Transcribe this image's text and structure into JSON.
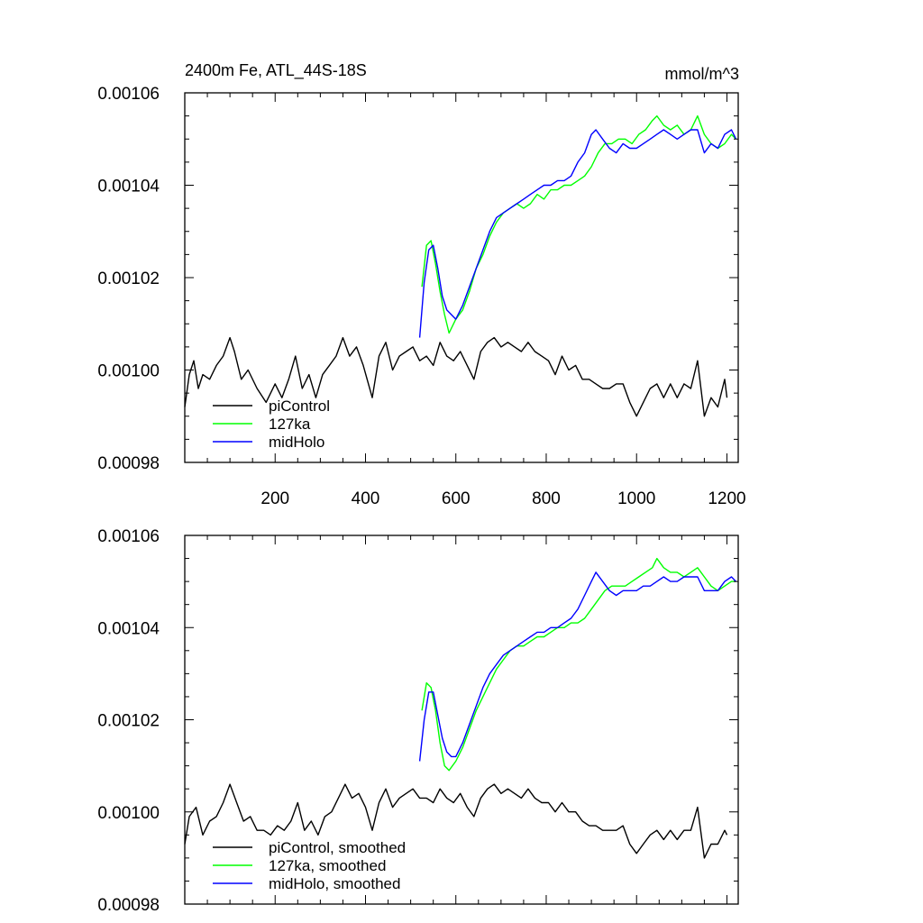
{
  "chart_data": [
    {
      "type": "line",
      "title": "2400m Fe, ATL_44S-18S",
      "units_label": "mmol/m^3",
      "xlim": [
        0,
        1225
      ],
      "ylim": [
        0.00098,
        0.00106
      ],
      "x_ticks": [
        200,
        400,
        600,
        800,
        1000,
        1200
      ],
      "x_tick_labels": [
        "200",
        "400",
        "600",
        "800",
        "1000",
        "1200"
      ],
      "y_ticks": [
        0.00098,
        0.001,
        0.00102,
        0.00104,
        0.00106
      ],
      "y_tick_labels": [
        "0.00098",
        "0.00100",
        "0.00102",
        "0.00104",
        "0.00106"
      ],
      "grid": false,
      "legend_position": "bottom-left",
      "series": [
        {
          "name": "piControl",
          "color": "#000000",
          "x": [
            0,
            10,
            20,
            30,
            40,
            55,
            70,
            85,
            100,
            110,
            125,
            140,
            160,
            180,
            200,
            215,
            230,
            245,
            260,
            275,
            290,
            305,
            320,
            335,
            350,
            365,
            380,
            395,
            415,
            430,
            445,
            460,
            475,
            490,
            505,
            520,
            535,
            550,
            565,
            580,
            595,
            610,
            625,
            640,
            655,
            670,
            685,
            700,
            715,
            730,
            745,
            760,
            775,
            790,
            805,
            820,
            835,
            850,
            865,
            880,
            895,
            910,
            925,
            940,
            955,
            970,
            985,
            1000,
            1015,
            1030,
            1045,
            1060,
            1075,
            1090,
            1105,
            1120,
            1135,
            1150,
            1165,
            1180,
            1195,
            1200
          ],
          "y": [
            0.000992,
            0.000999,
            0.001002,
            0.000996,
            0.000999,
            0.000998,
            0.001001,
            0.001003,
            0.001007,
            0.001004,
            0.000998,
            0.001,
            0.000996,
            0.000993,
            0.000997,
            0.000994,
            0.000998,
            0.001003,
            0.000996,
            0.000999,
            0.000994,
            0.000999,
            0.001001,
            0.001003,
            0.001007,
            0.001003,
            0.001005,
            0.001001,
            0.000994,
            0.001003,
            0.001006,
            0.001,
            0.001003,
            0.001004,
            0.001005,
            0.001002,
            0.001003,
            0.001001,
            0.001006,
            0.001003,
            0.001002,
            0.001004,
            0.001001,
            0.000998,
            0.001004,
            0.001006,
            0.001007,
            0.001005,
            0.001006,
            0.001005,
            0.001004,
            0.001006,
            0.001004,
            0.001003,
            0.001002,
            0.000999,
            0.001003,
            0.001,
            0.001001,
            0.000998,
            0.000998,
            0.000997,
            0.000996,
            0.000996,
            0.000997,
            0.000997,
            0.000993,
            0.00099,
            0.000993,
            0.000996,
            0.000997,
            0.000994,
            0.000997,
            0.000994,
            0.000997,
            0.000996,
            0.001002,
            0.00099,
            0.000994,
            0.000992,
            0.000998,
            0.000994
          ]
        },
        {
          "name": "127ka",
          "color": "#00ff00",
          "x": [
            525,
            535,
            545,
            555,
            565,
            575,
            585,
            600,
            615,
            630,
            645,
            660,
            675,
            690,
            705,
            720,
            735,
            750,
            765,
            780,
            795,
            810,
            825,
            840,
            855,
            870,
            885,
            900,
            915,
            930,
            945,
            960,
            975,
            990,
            1005,
            1020,
            1035,
            1045,
            1060,
            1075,
            1090,
            1105,
            1120,
            1135,
            1150,
            1165,
            1180,
            1195,
            1210,
            1220
          ],
          "y": [
            0.001018,
            0.001027,
            0.001028,
            0.001023,
            0.001017,
            0.001012,
            0.001008,
            0.001011,
            0.001013,
            0.001017,
            0.001022,
            0.001025,
            0.001029,
            0.001032,
            0.001034,
            0.001035,
            0.001036,
            0.001035,
            0.001036,
            0.001038,
            0.001037,
            0.001039,
            0.001039,
            0.00104,
            0.00104,
            0.001041,
            0.001042,
            0.001044,
            0.001047,
            0.001049,
            0.001049,
            0.00105,
            0.00105,
            0.001049,
            0.001051,
            0.001052,
            0.001054,
            0.001055,
            0.001053,
            0.001052,
            0.001053,
            0.001051,
            0.001052,
            0.001055,
            0.001051,
            0.001049,
            0.001048,
            0.001049,
            0.001051,
            0.00105
          ]
        },
        {
          "name": "midHolo",
          "color": "#0000ff",
          "x": [
            520,
            530,
            540,
            550,
            560,
            570,
            580,
            590,
            600,
            615,
            630,
            645,
            660,
            675,
            690,
            705,
            720,
            735,
            750,
            765,
            780,
            795,
            810,
            825,
            840,
            855,
            870,
            885,
            900,
            910,
            925,
            940,
            955,
            970,
            985,
            1000,
            1015,
            1030,
            1045,
            1060,
            1075,
            1090,
            1105,
            1120,
            1135,
            1150,
            1165,
            1180,
            1195,
            1210,
            1220
          ],
          "y": [
            0.001007,
            0.001019,
            0.001026,
            0.001027,
            0.001022,
            0.001016,
            0.001013,
            0.001012,
            0.001011,
            0.001014,
            0.001018,
            0.001022,
            0.001026,
            0.00103,
            0.001033,
            0.001034,
            0.001035,
            0.001036,
            0.001037,
            0.001038,
            0.001039,
            0.00104,
            0.00104,
            0.001041,
            0.001041,
            0.001042,
            0.001045,
            0.001047,
            0.001051,
            0.001052,
            0.00105,
            0.001048,
            0.001047,
            0.001049,
            0.001048,
            0.001048,
            0.001049,
            0.00105,
            0.001051,
            0.001052,
            0.001051,
            0.00105,
            0.001051,
            0.001052,
            0.001052,
            0.001047,
            0.001049,
            0.001048,
            0.001051,
            0.001052,
            0.00105
          ]
        }
      ]
    },
    {
      "type": "line",
      "xlim": [
        0,
        1225
      ],
      "ylim": [
        0.00098,
        0.00106
      ],
      "x_ticks": [
        200,
        400,
        600,
        800,
        1000,
        1200
      ],
      "y_ticks": [
        0.00098,
        0.001,
        0.00102,
        0.00104,
        0.00106
      ],
      "y_tick_labels": [
        "0.00098",
        "0.00100",
        "0.00102",
        "0.00104",
        "0.00106"
      ],
      "grid": false,
      "legend_position": "bottom-left",
      "series": [
        {
          "name": "piControl, smoothed",
          "color": "#000000",
          "x": [
            0,
            10,
            25,
            40,
            55,
            70,
            85,
            100,
            115,
            130,
            145,
            160,
            175,
            190,
            205,
            220,
            235,
            250,
            265,
            280,
            295,
            310,
            325,
            340,
            355,
            370,
            385,
            400,
            415,
            430,
            445,
            460,
            475,
            490,
            505,
            520,
            535,
            550,
            565,
            580,
            595,
            610,
            625,
            640,
            655,
            670,
            685,
            700,
            715,
            730,
            745,
            760,
            775,
            790,
            805,
            820,
            835,
            850,
            865,
            880,
            895,
            910,
            925,
            940,
            955,
            970,
            985,
            1000,
            1015,
            1030,
            1045,
            1060,
            1075,
            1090,
            1105,
            1120,
            1135,
            1150,
            1165,
            1180,
            1195,
            1200
          ],
          "y": [
            0.000993,
            0.000999,
            0.001001,
            0.000995,
            0.000998,
            0.000999,
            0.001002,
            0.001006,
            0.001002,
            0.000998,
            0.000999,
            0.000996,
            0.000996,
            0.000995,
            0.000997,
            0.000996,
            0.000998,
            0.001002,
            0.000996,
            0.000998,
            0.000995,
            0.000999,
            0.001,
            0.001003,
            0.001006,
            0.001003,
            0.001004,
            0.001001,
            0.000996,
            0.001002,
            0.001005,
            0.001001,
            0.001003,
            0.001004,
            0.001005,
            0.001003,
            0.001003,
            0.001002,
            0.001005,
            0.001003,
            0.001002,
            0.001004,
            0.001001,
            0.000999,
            0.001003,
            0.001005,
            0.001006,
            0.001004,
            0.001005,
            0.001004,
            0.001003,
            0.001005,
            0.001003,
            0.001002,
            0.001002,
            0.001,
            0.001002,
            0.001,
            0.001,
            0.000998,
            0.000997,
            0.000997,
            0.000996,
            0.000996,
            0.000996,
            0.000997,
            0.000993,
            0.000991,
            0.000993,
            0.000995,
            0.000996,
            0.000994,
            0.000996,
            0.000994,
            0.000996,
            0.000996,
            0.001001,
            0.00099,
            0.000993,
            0.000993,
            0.000996,
            0.000995
          ]
        },
        {
          "name": "127ka, smoothed",
          "color": "#00ff00",
          "x": [
            525,
            535,
            545,
            555,
            565,
            575,
            585,
            600,
            615,
            630,
            645,
            660,
            675,
            690,
            705,
            720,
            735,
            750,
            765,
            780,
            795,
            810,
            825,
            840,
            855,
            870,
            885,
            900,
            915,
            930,
            945,
            960,
            975,
            990,
            1005,
            1020,
            1035,
            1045,
            1060,
            1075,
            1090,
            1105,
            1120,
            1135,
            1150,
            1165,
            1180,
            1195,
            1210,
            1220
          ],
          "y": [
            0.001022,
            0.001028,
            0.001027,
            0.001022,
            0.001015,
            0.00101,
            0.001009,
            0.001011,
            0.001014,
            0.001018,
            0.001022,
            0.001025,
            0.001028,
            0.001031,
            0.001033,
            0.001035,
            0.001036,
            0.001036,
            0.001037,
            0.001038,
            0.001038,
            0.001039,
            0.00104,
            0.00104,
            0.001041,
            0.001041,
            0.001042,
            0.001044,
            0.001046,
            0.001048,
            0.001049,
            0.001049,
            0.001049,
            0.00105,
            0.001051,
            0.001052,
            0.001053,
            0.001055,
            0.001053,
            0.001052,
            0.001052,
            0.001051,
            0.001052,
            0.001053,
            0.001051,
            0.001049,
            0.001048,
            0.001049,
            0.00105,
            0.00105
          ]
        },
        {
          "name": "midHolo, smoothed",
          "color": "#0000ff",
          "x": [
            520,
            530,
            540,
            550,
            560,
            570,
            580,
            590,
            600,
            615,
            630,
            645,
            660,
            675,
            690,
            705,
            720,
            735,
            750,
            765,
            780,
            795,
            810,
            825,
            840,
            855,
            870,
            885,
            900,
            910,
            925,
            940,
            955,
            970,
            985,
            1000,
            1015,
            1030,
            1045,
            1060,
            1075,
            1090,
            1105,
            1120,
            1135,
            1150,
            1165,
            1180,
            1195,
            1210,
            1220
          ],
          "y": [
            0.001011,
            0.00102,
            0.001026,
            0.001026,
            0.001021,
            0.001016,
            0.001013,
            0.001012,
            0.001012,
            0.001015,
            0.001019,
            0.001023,
            0.001027,
            0.00103,
            0.001032,
            0.001034,
            0.001035,
            0.001036,
            0.001037,
            0.001038,
            0.001039,
            0.001039,
            0.00104,
            0.00104,
            0.001041,
            0.001042,
            0.001044,
            0.001047,
            0.00105,
            0.001052,
            0.00105,
            0.001048,
            0.001047,
            0.001048,
            0.001048,
            0.001048,
            0.001049,
            0.001049,
            0.00105,
            0.001051,
            0.00105,
            0.00105,
            0.001051,
            0.001051,
            0.001051,
            0.001048,
            0.001048,
            0.001048,
            0.00105,
            0.001051,
            0.00105
          ]
        }
      ]
    }
  ]
}
